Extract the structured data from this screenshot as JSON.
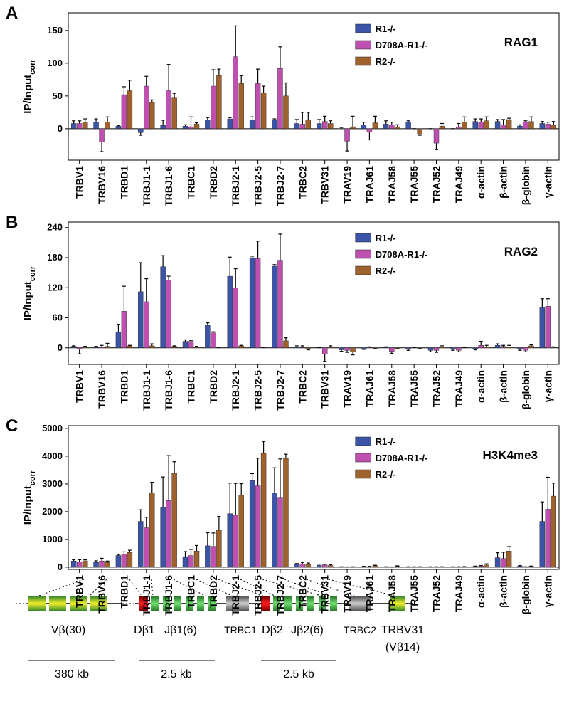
{
  "chart_data": [
    {
      "type": "bar",
      "panel": "A",
      "title": "RAG1",
      "ylabel": {
        "text": "IP/Input",
        "sub": "corr"
      },
      "categories": [
        "TRBV1",
        "TRBV16",
        "TRBD1",
        "TRBJ1-1",
        "TRBJ1-6",
        "TRBC1",
        "TRBD2",
        "TRBJ2-1",
        "TRBJ2-5",
        "TRBJ2-7",
        "TRBC2",
        "TRBV31",
        "TRAV19",
        "TRAJ61",
        "TRAJ58",
        "TRAJ55",
        "TRAJ52",
        "TRAJ49",
        "α-actin",
        "β-actin",
        "β-globin",
        "γ-actin"
      ],
      "ylim": [
        -48,
        177
      ],
      "yticks": [
        0,
        50,
        100,
        150
      ],
      "legend": "upper right",
      "series": [
        {
          "name": "R1-/-",
          "color": "#3b54a8",
          "values": [
            8,
            10,
            4,
            -6,
            5,
            4,
            13,
            15,
            13,
            13,
            8,
            8,
            0,
            6,
            7,
            10,
            0,
            0,
            11,
            11,
            4,
            8
          ],
          "errors": [
            4,
            5,
            1,
            4,
            8,
            2,
            4,
            2,
            5,
            2,
            6,
            6,
            2,
            4,
            5,
            2,
            0,
            0,
            4,
            3,
            2,
            3
          ]
        },
        {
          "name": "D708A-R1-/-",
          "color": "#c050b0",
          "values": [
            8,
            -20,
            52,
            65,
            58,
            3,
            65,
            110,
            69,
            92,
            7,
            11,
            -19,
            -5,
            6,
            0,
            -22,
            3,
            10,
            6,
            10,
            7
          ],
          "errors": [
            4,
            15,
            12,
            15,
            40,
            15,
            25,
            47,
            22,
            33,
            18,
            8,
            15,
            12,
            4,
            0,
            10,
            5,
            5,
            8,
            2,
            3
          ]
        },
        {
          "name": "R2-/-",
          "color": "#a0622c",
          "values": [
            10,
            10,
            58,
            40,
            48,
            7,
            81,
            69,
            55,
            50,
            13,
            8,
            3,
            9,
            3,
            -8,
            4,
            10,
            12,
            14,
            11,
            6
          ],
          "errors": [
            5,
            8,
            16,
            4,
            6,
            2,
            10,
            12,
            10,
            20,
            12,
            4,
            16,
            10,
            3,
            2,
            4,
            8,
            6,
            2,
            7,
            5
          ]
        }
      ]
    },
    {
      "type": "bar",
      "panel": "B",
      "title": "RAG2",
      "ylabel": {
        "text": "IP/Input",
        "sub": "corr"
      },
      "categories": [
        "TRBV1",
        "TRBV16",
        "TRBD1",
        "TRBJ1-1",
        "TRBJ1-6",
        "TRBC1",
        "TRBD2",
        "TRBJ2-1",
        "TRBJ2-5",
        "TRBJ2-7",
        "TRBC2",
        "TRBV31",
        "TRAV19",
        "TRAJ61",
        "TRAJ58",
        "TRAJ55",
        "TRAJ52",
        "TRAJ49",
        "α-actin",
        "β-actin",
        "β-globin",
        "γ-actin"
      ],
      "ylim": [
        -33,
        251
      ],
      "yticks": [
        0,
        60,
        120,
        180,
        240
      ],
      "legend": "upper right",
      "series": [
        {
          "name": "R1-/-",
          "color": "#3b54a8",
          "values": [
            3,
            2,
            32,
            112,
            162,
            13,
            45,
            143,
            180,
            163,
            2,
            0,
            -4,
            -2,
            1,
            -3,
            -5,
            -3,
            -2,
            5,
            -3,
            80
          ],
          "errors": [
            1,
            1,
            15,
            58,
            22,
            3,
            5,
            38,
            3,
            3,
            2,
            1,
            3,
            1,
            1,
            2,
            3,
            2,
            2,
            3,
            2,
            18
          ]
        },
        {
          "name": "D708A-R1-/-",
          "color": "#c050b0",
          "values": [
            -2,
            2,
            73,
            92,
            135,
            13,
            30,
            120,
            178,
            175,
            1,
            -12,
            -5,
            1,
            -7,
            0,
            -5,
            -5,
            5,
            3,
            -5,
            83
          ],
          "errors": [
            10,
            3,
            50,
            46,
            8,
            2,
            2,
            38,
            35,
            52,
            3,
            15,
            4,
            1,
            4,
            1,
            4,
            3,
            8,
            2,
            3,
            15
          ]
        },
        {
          "name": "R2-/-",
          "color": "#a0622c",
          "values": [
            2,
            3,
            4,
            4,
            3,
            2,
            1,
            4,
            1,
            14,
            -2,
            2,
            -8,
            -1,
            -1,
            -1,
            2,
            0,
            2,
            2,
            4,
            1
          ],
          "errors": [
            1,
            6,
            1,
            4,
            1,
            1,
            0,
            1,
            0,
            6,
            2,
            2,
            6,
            1,
            1,
            1,
            2,
            1,
            3,
            3,
            2,
            1
          ]
        }
      ]
    },
    {
      "type": "bar",
      "panel": "C",
      "title": "H3K4me3",
      "ylabel": {
        "text": "IP/Input",
        "sub": "corr"
      },
      "categories": [
        "TRBV1",
        "TRBV16",
        "TRBD1",
        "TRBJ1-1",
        "TRBJ1-6",
        "TRBC1",
        "TRBD2",
        "TRBJ2-1",
        "TRBJ2-5",
        "TRBJ2-7",
        "TRBC2",
        "TRBV31",
        "TRAV19",
        "TRAJ61",
        "TRAJ58",
        "TRAJ55",
        "TRAJ52",
        "TRAJ49",
        "α-actin",
        "β-actin",
        "β-globin",
        "γ-actin"
      ],
      "ylim": [
        -80,
        5100
      ],
      "yticks": [
        0,
        1000,
        2000,
        3000,
        4000,
        5000
      ],
      "legend": "upper right",
      "series": [
        {
          "name": "R1-/-",
          "color": "#3b54a8",
          "values": [
            220,
            170,
            420,
            1650,
            2150,
            380,
            770,
            1930,
            3120,
            2680,
            90,
            70,
            10,
            20,
            10,
            10,
            10,
            10,
            30,
            340,
            40,
            1650
          ],
          "errors": [
            50,
            60,
            40,
            420,
            1100,
            180,
            470,
            1100,
            250,
            900,
            40,
            40,
            5,
            10,
            5,
            5,
            5,
            5,
            10,
            180,
            20,
            700
          ]
        },
        {
          "name": "D708A-R1-/-",
          "color": "#c050b0",
          "values": [
            190,
            220,
            470,
            1420,
            2400,
            420,
            750,
            1870,
            2930,
            2520,
            110,
            80,
            5,
            20,
            5,
            10,
            10,
            10,
            40,
            310,
            10,
            2090
          ],
          "errors": [
            80,
            100,
            80,
            380,
            1620,
            220,
            480,
            1150,
            1000,
            1380,
            60,
            30,
            5,
            10,
            5,
            5,
            5,
            5,
            20,
            230,
            5,
            1150
          ]
        },
        {
          "name": "R2-/-",
          "color": "#a0622c",
          "values": [
            230,
            170,
            530,
            2680,
            3380,
            580,
            1330,
            2590,
            4100,
            3920,
            100,
            60,
            10,
            50,
            30,
            10,
            10,
            15,
            80,
            580,
            30,
            2560
          ],
          "errors": [
            40,
            50,
            80,
            380,
            420,
            200,
            500,
            420,
            430,
            150,
            50,
            30,
            5,
            20,
            20,
            5,
            5,
            5,
            40,
            160,
            10,
            470
          ]
        }
      ]
    }
  ],
  "diagram": {
    "segments": [
      "Vβ(30)",
      "Dβ1",
      "Jβ1(6)",
      "TRBC1",
      "Dβ2",
      "Jβ2(6)",
      "TRBC2",
      "TRBV31",
      "(Vβ14)"
    ],
    "scales": [
      "380 kb",
      "2.5 kb",
      "2.5 kb"
    ]
  }
}
